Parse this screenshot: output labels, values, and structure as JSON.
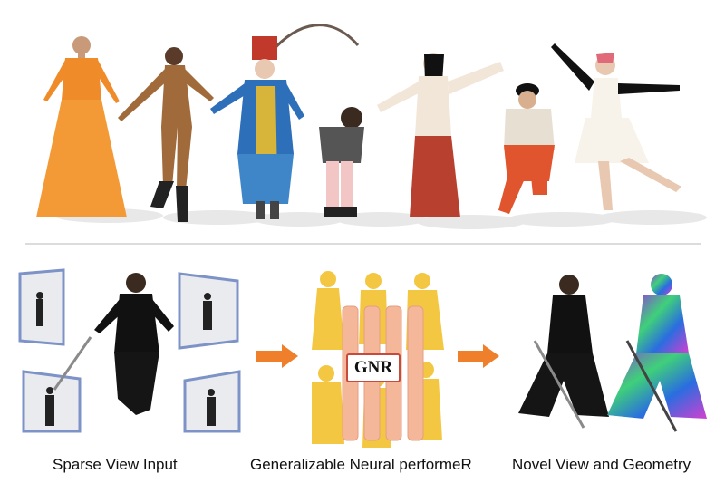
{
  "labels": {
    "input": "Sparse View Input",
    "middle": "Generalizable Neural performeR",
    "output": "Novel View and Geometry",
    "gnr": "GNR"
  },
  "colors": {
    "arrow": "#f07f2b",
    "divider": "#dcdcdc",
    "gnr_border": "#c84a3c",
    "gnr_column": "#f4b79a",
    "silhouette": "#f3c12f",
    "frame_border": "#7d93c8"
  },
  "icons": {
    "arrow": "right-arrow-icon"
  }
}
